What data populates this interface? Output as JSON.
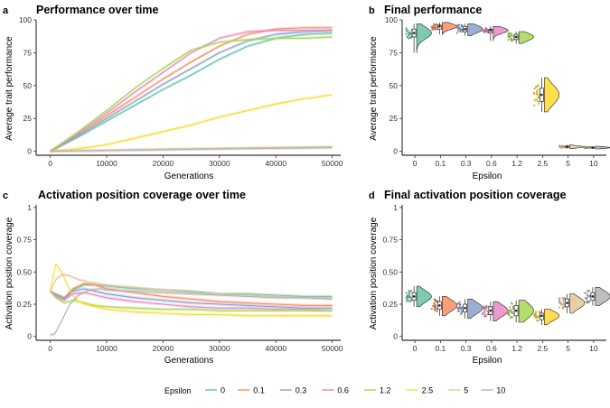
{
  "legend": {
    "title": "Epsilon",
    "entries": [
      {
        "label": "0",
        "color": "#66C2A5"
      },
      {
        "label": "0.1",
        "color": "#FC8D62"
      },
      {
        "label": "0.3",
        "color": "#8DA0CB"
      },
      {
        "label": "0.6",
        "color": "#E78AC3"
      },
      {
        "label": "1.2",
        "color": "#A6D854"
      },
      {
        "label": "2.5",
        "color": "#FFD92F"
      },
      {
        "label": "5",
        "color": "#E5C494"
      },
      {
        "label": "10",
        "color": "#B3B3B3"
      }
    ]
  },
  "chart_data": [
    {
      "tag": "a",
      "type": "line",
      "title": "Performance over time",
      "xlabel": "Generations",
      "ylabel": "Average trait performance",
      "xlim": [
        -2500,
        51500
      ],
      "ylim": [
        -3,
        100
      ],
      "xticks": [
        0,
        10000,
        20000,
        30000,
        40000,
        50000
      ],
      "yticks": [
        0,
        25,
        50,
        75,
        100
      ],
      "series": [
        {
          "name": "0",
          "points": [
            [
              0,
              0
            ],
            [
              5000,
              11
            ],
            [
              10000,
              23
            ],
            [
              15000,
              35
            ],
            [
              20000,
              47
            ],
            [
              25000,
              58
            ],
            [
              30000,
              70
            ],
            [
              35000,
              80
            ],
            [
              40000,
              86
            ],
            [
              45000,
              89
            ],
            [
              50000,
              90
            ]
          ]
        },
        {
          "name": "0.1",
          "points": [
            [
              0,
              0
            ],
            [
              5000,
              13
            ],
            [
              10000,
              27
            ],
            [
              15000,
              41
            ],
            [
              20000,
              55
            ],
            [
              25000,
              68
            ],
            [
              30000,
              80
            ],
            [
              35000,
              89
            ],
            [
              40000,
              93
            ],
            [
              45000,
              94
            ],
            [
              50000,
              94
            ]
          ]
        },
        {
          "name": "0.3",
          "points": [
            [
              0,
              0
            ],
            [
              5000,
              12
            ],
            [
              10000,
              25
            ],
            [
              15000,
              38
            ],
            [
              20000,
              51
            ],
            [
              25000,
              63
            ],
            [
              30000,
              75
            ],
            [
              35000,
              84
            ],
            [
              40000,
              89
            ],
            [
              45000,
              91
            ],
            [
              50000,
              92
            ]
          ]
        },
        {
          "name": "0.6",
          "points": [
            [
              0,
              0
            ],
            [
              5000,
              14
            ],
            [
              10000,
              29
            ],
            [
              15000,
              45
            ],
            [
              20000,
              60
            ],
            [
              25000,
              75
            ],
            [
              30000,
              86
            ],
            [
              35000,
              91
            ],
            [
              40000,
              92
            ],
            [
              45000,
              92
            ],
            [
              50000,
              92
            ]
          ]
        },
        {
          "name": "1.2",
          "points": [
            [
              0,
              0
            ],
            [
              5000,
              15
            ],
            [
              10000,
              31
            ],
            [
              15000,
              48
            ],
            [
              20000,
              63
            ],
            [
              25000,
              77
            ],
            [
              30000,
              83
            ],
            [
              35000,
              85
            ],
            [
              40000,
              86
            ],
            [
              45000,
              86
            ],
            [
              50000,
              87
            ]
          ]
        },
        {
          "name": "2.5",
          "points": [
            [
              0,
              0
            ],
            [
              5000,
              2
            ],
            [
              10000,
              5
            ],
            [
              15000,
              10
            ],
            [
              20000,
              15
            ],
            [
              25000,
              20
            ],
            [
              30000,
              26
            ],
            [
              35000,
              31
            ],
            [
              40000,
              36
            ],
            [
              45000,
              40
            ],
            [
              50000,
              43
            ]
          ]
        },
        {
          "name": "5",
          "points": [
            [
              0,
              0
            ],
            [
              10000,
              0.8
            ],
            [
              20000,
              1.6
            ],
            [
              30000,
              2.3
            ],
            [
              40000,
              2.9
            ],
            [
              50000,
              3.4
            ]
          ]
        },
        {
          "name": "10",
          "points": [
            [
              0,
              0
            ],
            [
              10000,
              0.6
            ],
            [
              20000,
              1.2
            ],
            [
              30000,
              1.8
            ],
            [
              40000,
              2.3
            ],
            [
              50000,
              2.8
            ]
          ]
        }
      ]
    },
    {
      "tag": "b",
      "type": "violin",
      "title": "Final performance",
      "xlabel": "Epsilon",
      "ylabel": "Average trait performance",
      "ylim": [
        -3,
        100
      ],
      "yticks": [
        0,
        25,
        50,
        75,
        100
      ],
      "categories": [
        "0",
        "0.1",
        "0.3",
        "0.6",
        "1.2",
        "2.5",
        "5",
        "10"
      ],
      "groups": [
        {
          "median": 90,
          "q1": 87,
          "q3": 93,
          "min": 75,
          "max": 97
        },
        {
          "median": 95,
          "q1": 93,
          "q3": 96,
          "min": 89,
          "max": 98
        },
        {
          "median": 93,
          "q1": 91,
          "q3": 95,
          "min": 88,
          "max": 97
        },
        {
          "median": 92,
          "q1": 90,
          "q3": 93,
          "min": 84,
          "max": 95
        },
        {
          "median": 87,
          "q1": 85,
          "q3": 89,
          "min": 82,
          "max": 91
        },
        {
          "median": 43,
          "q1": 38,
          "q3": 48,
          "min": 30,
          "max": 56
        },
        {
          "median": 3.4,
          "q1": 3,
          "q3": 4,
          "min": 2,
          "max": 5
        },
        {
          "median": 2.8,
          "q1": 2.4,
          "q3": 3.2,
          "min": 1.8,
          "max": 3.8
        }
      ]
    },
    {
      "tag": "c",
      "type": "line",
      "title": "Activation position coverage over time",
      "xlabel": "Generations",
      "ylabel": "Activation position coverage",
      "xlim": [
        -2500,
        51500
      ],
      "ylim": [
        -0.03,
        1.02
      ],
      "xticks": [
        0,
        10000,
        20000,
        30000,
        40000,
        50000
      ],
      "yticks": [
        0,
        0.25,
        0.5,
        0.75,
        1
      ],
      "series": [
        {
          "name": "0",
          "points": [
            [
              0,
              0.35
            ],
            [
              1000,
              0.33
            ],
            [
              2500,
              0.3
            ],
            [
              4000,
              0.36
            ],
            [
              6000,
              0.4
            ],
            [
              8000,
              0.4
            ],
            [
              10000,
              0.39
            ],
            [
              15000,
              0.37
            ],
            [
              20000,
              0.36
            ],
            [
              25000,
              0.35
            ],
            [
              30000,
              0.33
            ],
            [
              35000,
              0.33
            ],
            [
              40000,
              0.32
            ],
            [
              45000,
              0.31
            ],
            [
              50000,
              0.31
            ]
          ]
        },
        {
          "name": "0.1",
          "points": [
            [
              0,
              0.35
            ],
            [
              1000,
              0.32
            ],
            [
              2500,
              0.3
            ],
            [
              4000,
              0.37
            ],
            [
              6000,
              0.41
            ],
            [
              8000,
              0.4
            ],
            [
              10000,
              0.37
            ],
            [
              15000,
              0.34
            ],
            [
              20000,
              0.31
            ],
            [
              25000,
              0.29
            ],
            [
              30000,
              0.27
            ],
            [
              35000,
              0.26
            ],
            [
              40000,
              0.25
            ],
            [
              45000,
              0.24
            ],
            [
              50000,
              0.24
            ]
          ]
        },
        {
          "name": "0.3",
          "points": [
            [
              0,
              0.35
            ],
            [
              1000,
              0.32
            ],
            [
              2500,
              0.29
            ],
            [
              4000,
              0.35
            ],
            [
              6000,
              0.37
            ],
            [
              8000,
              0.35
            ],
            [
              10000,
              0.33
            ],
            [
              15000,
              0.3
            ],
            [
              20000,
              0.28
            ],
            [
              25000,
              0.26
            ],
            [
              30000,
              0.25
            ],
            [
              35000,
              0.24
            ],
            [
              40000,
              0.23
            ],
            [
              45000,
              0.22
            ],
            [
              50000,
              0.22
            ]
          ]
        },
        {
          "name": "0.6",
          "points": [
            [
              0,
              0.35
            ],
            [
              1000,
              0.31
            ],
            [
              2500,
              0.28
            ],
            [
              4000,
              0.33
            ],
            [
              6000,
              0.34
            ],
            [
              8000,
              0.32
            ],
            [
              10000,
              0.3
            ],
            [
              15000,
              0.27
            ],
            [
              20000,
              0.25
            ],
            [
              25000,
              0.23
            ],
            [
              30000,
              0.22
            ],
            [
              35000,
              0.22
            ],
            [
              40000,
              0.21
            ],
            [
              45000,
              0.21
            ],
            [
              50000,
              0.2
            ]
          ]
        },
        {
          "name": "1.2",
          "points": [
            [
              0,
              0.35
            ],
            [
              1000,
              0.3
            ],
            [
              2500,
              0.26
            ],
            [
              4000,
              0.28
            ],
            [
              6000,
              0.26
            ],
            [
              8000,
              0.24
            ],
            [
              10000,
              0.23
            ],
            [
              15000,
              0.22
            ],
            [
              20000,
              0.21
            ],
            [
              25000,
              0.21
            ],
            [
              30000,
              0.2
            ],
            [
              35000,
              0.2
            ],
            [
              40000,
              0.2
            ],
            [
              45000,
              0.2
            ],
            [
              50000,
              0.2
            ]
          ]
        },
        {
          "name": "2.5",
          "points": [
            [
              0,
              0.35
            ],
            [
              1000,
              0.56
            ],
            [
              2000,
              0.5
            ],
            [
              3000,
              0.4
            ],
            [
              4000,
              0.32
            ],
            [
              5000,
              0.27
            ],
            [
              7000,
              0.24
            ],
            [
              10000,
              0.21
            ],
            [
              15000,
              0.19
            ],
            [
              20000,
              0.18
            ],
            [
              25000,
              0.17
            ],
            [
              30000,
              0.17
            ],
            [
              35000,
              0.16
            ],
            [
              40000,
              0.16
            ],
            [
              45000,
              0.16
            ],
            [
              50000,
              0.16
            ]
          ]
        },
        {
          "name": "5",
          "points": [
            [
              0,
              0.35
            ],
            [
              1000,
              0.44
            ],
            [
              2000,
              0.48
            ],
            [
              3500,
              0.47
            ],
            [
              5000,
              0.44
            ],
            [
              7000,
              0.42
            ],
            [
              10000,
              0.4
            ],
            [
              15000,
              0.38
            ],
            [
              20000,
              0.36
            ],
            [
              25000,
              0.34
            ],
            [
              30000,
              0.33
            ],
            [
              35000,
              0.32
            ],
            [
              40000,
              0.31
            ],
            [
              45000,
              0.3
            ],
            [
              50000,
              0.3
            ]
          ]
        },
        {
          "name": "10",
          "points": [
            [
              0,
              0.01
            ],
            [
              800,
              0.02
            ],
            [
              2000,
              0.12
            ],
            [
              3500,
              0.25
            ],
            [
              5000,
              0.32
            ],
            [
              7000,
              0.36
            ],
            [
              9000,
              0.37
            ],
            [
              10000,
              0.36
            ],
            [
              15000,
              0.35
            ],
            [
              20000,
              0.34
            ],
            [
              25000,
              0.33
            ],
            [
              30000,
              0.32
            ],
            [
              35000,
              0.31
            ],
            [
              40000,
              0.3
            ],
            [
              45000,
              0.3
            ],
            [
              50000,
              0.29
            ]
          ]
        }
      ]
    },
    {
      "tag": "d",
      "type": "violin",
      "title": "Final activation position coverage",
      "xlabel": "Epsilon",
      "ylabel": "Activation position coverage",
      "ylim": [
        -0.03,
        1.02
      ],
      "yticks": [
        0,
        0.25,
        0.5,
        0.75,
        1
      ],
      "categories": [
        "0",
        "0.1",
        "0.3",
        "0.6",
        "1.2",
        "2.5",
        "5",
        "10"
      ],
      "groups": [
        {
          "median": 0.31,
          "q1": 0.28,
          "q3": 0.34,
          "min": 0.23,
          "max": 0.39
        },
        {
          "median": 0.24,
          "q1": 0.21,
          "q3": 0.27,
          "min": 0.16,
          "max": 0.31
        },
        {
          "median": 0.22,
          "q1": 0.19,
          "q3": 0.25,
          "min": 0.14,
          "max": 0.29
        },
        {
          "median": 0.2,
          "q1": 0.17,
          "q3": 0.23,
          "min": 0.12,
          "max": 0.27
        },
        {
          "median": 0.2,
          "q1": 0.16,
          "q3": 0.24,
          "min": 0.11,
          "max": 0.28
        },
        {
          "median": 0.16,
          "q1": 0.13,
          "q3": 0.18,
          "min": 0.09,
          "max": 0.21
        },
        {
          "median": 0.26,
          "q1": 0.23,
          "q3": 0.29,
          "min": 0.18,
          "max": 0.33
        },
        {
          "median": 0.31,
          "q1": 0.28,
          "q3": 0.34,
          "min": 0.24,
          "max": 0.38
        }
      ]
    }
  ]
}
